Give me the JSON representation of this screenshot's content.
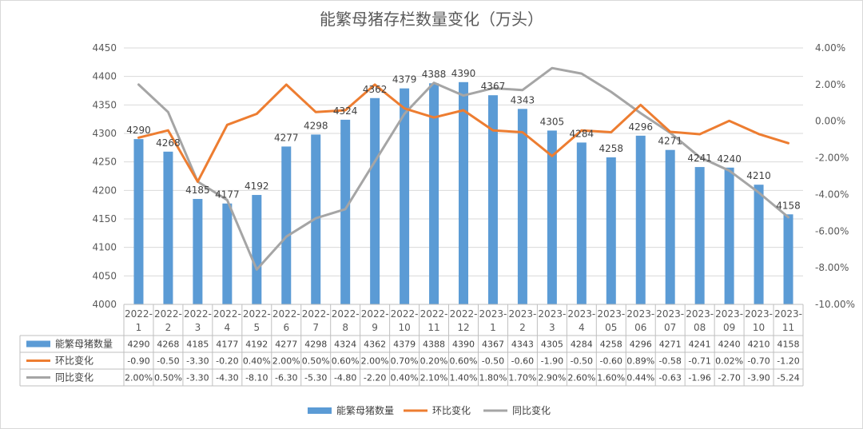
{
  "chart_data": {
    "type": "bar",
    "title": "能繁母猪存栏数量变化（万头）",
    "categories": [
      [
        "2022-",
        "1"
      ],
      [
        "2022-",
        "2"
      ],
      [
        "2022-",
        "3"
      ],
      [
        "2022-",
        "4"
      ],
      [
        "2022-",
        "5"
      ],
      [
        "2022-",
        "6"
      ],
      [
        "2022-",
        "7"
      ],
      [
        "2022-",
        "8"
      ],
      [
        "2022-",
        "9"
      ],
      [
        "2022-",
        "10"
      ],
      [
        "2022-",
        "11"
      ],
      [
        "2022-",
        "12"
      ],
      [
        "2023-",
        "1"
      ],
      [
        "2023-",
        "2"
      ],
      [
        "2023-",
        "3"
      ],
      [
        "2023-",
        "4"
      ],
      [
        "2023-",
        "05"
      ],
      [
        "2023-",
        "06"
      ],
      [
        "2023-",
        "07"
      ],
      [
        "2023-",
        "08"
      ],
      [
        "2023-",
        "09"
      ],
      [
        "2023-",
        "10"
      ],
      [
        "2023-",
        "11"
      ]
    ],
    "left_axis": {
      "min": 4000,
      "max": 4450,
      "step": 50,
      "tick_labels": [
        "4000",
        "4050",
        "4100",
        "4150",
        "4200",
        "4250",
        "4300",
        "4350",
        "4400",
        "4450"
      ]
    },
    "right_axis": {
      "min": -10,
      "max": 4,
      "step": 2,
      "tick_labels": [
        "-10.00%",
        "-8.00%",
        "-6.00%",
        "-4.00%",
        "-2.00%",
        "0.00%",
        "2.00%",
        "4.00%"
      ]
    },
    "grid": true,
    "legend_position": "bottom",
    "series": [
      {
        "name": "能繁母猪数量",
        "kind": "bar",
        "axis": "left",
        "color": "#5b9bd5",
        "values": [
          4290,
          4268,
          4185,
          4177,
          4192,
          4277,
          4298,
          4324,
          4362,
          4379,
          4388,
          4390,
          4367,
          4343,
          4305,
          4284,
          4258,
          4296,
          4271,
          4241,
          4240,
          4210,
          4158
        ],
        "table_text": [
          "4290",
          "4268",
          "4185",
          "4177",
          "4192",
          "4277",
          "4298",
          "4324",
          "4362",
          "4379",
          "4388",
          "4390",
          "4367",
          "4343",
          "4305",
          "4284",
          "4258",
          "4296",
          "4271",
          "4241",
          "4240",
          "4210",
          "4158"
        ]
      },
      {
        "name": "环比变化",
        "kind": "line",
        "axis": "right",
        "color": "#ed7d31",
        "values": [
          -0.9,
          -0.5,
          -3.3,
          -0.2,
          0.4,
          2.0,
          0.5,
          0.6,
          2.0,
          0.7,
          0.2,
          0.6,
          -0.5,
          -0.6,
          -1.9,
          -0.5,
          -0.6,
          0.89,
          -0.58,
          -0.71,
          0.02,
          -0.7,
          -1.2
        ],
        "table_text": [
          "-0.90",
          "-0.50",
          "-3.30",
          "-0.20",
          "0.40%",
          "2.00%",
          "0.50%",
          "0.60%",
          "2.00%",
          "0.70%",
          "0.20%",
          "0.60%",
          "-0.50",
          "-0.60",
          "-1.90",
          "-0.50",
          "-0.60",
          "0.89%",
          "-0.58",
          "-0.71",
          "0.02%",
          "-0.70",
          "-1.20"
        ]
      },
      {
        "name": "同比变化",
        "kind": "line",
        "axis": "right",
        "color": "#a5a5a5",
        "values": [
          2.0,
          0.5,
          -3.3,
          -4.3,
          -8.1,
          -6.3,
          -5.3,
          -4.8,
          -2.2,
          0.4,
          2.1,
          1.4,
          1.8,
          1.7,
          2.9,
          2.6,
          1.6,
          0.44,
          -0.63,
          -1.96,
          -2.7,
          -3.9,
          -5.24
        ],
        "table_text": [
          "2.00%",
          "0.50%",
          "-3.30",
          "-4.30",
          "-8.10",
          "-6.30",
          "-5.30",
          "-4.80",
          "-2.20",
          "0.40%",
          "2.10%",
          "1.40%",
          "1.80%",
          "1.70%",
          "2.90%",
          "2.60%",
          "1.60%",
          "0.44%",
          "-0.63",
          "-1.96",
          "-2.70",
          "-3.90",
          "-5.24"
        ]
      }
    ]
  }
}
